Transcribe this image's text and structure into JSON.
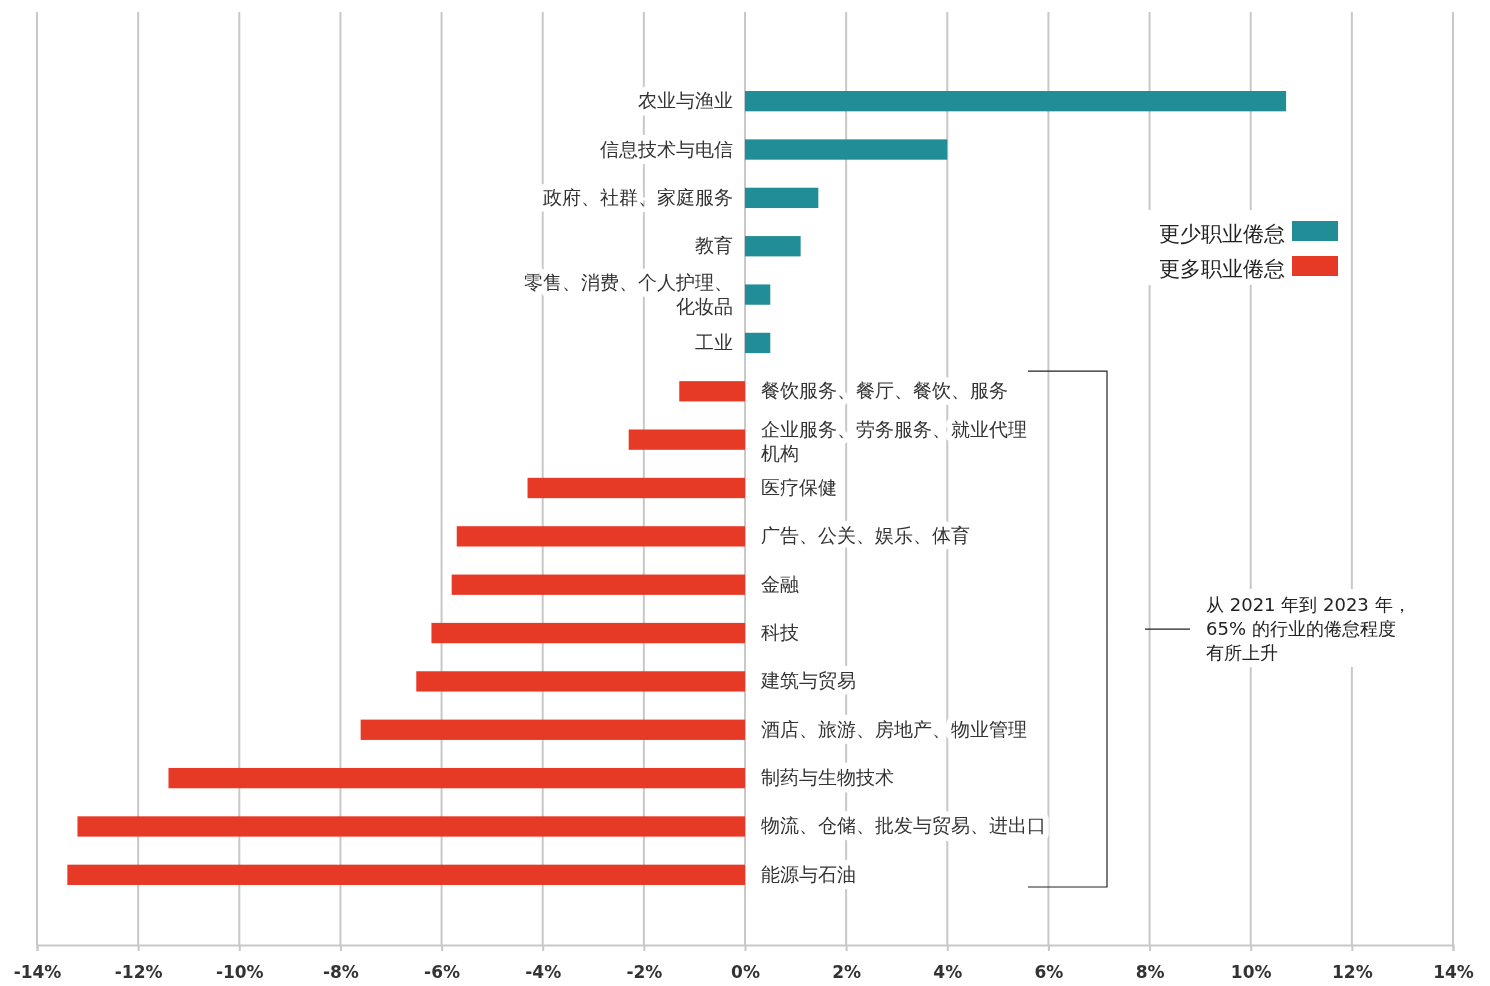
{
  "chart_data": {
    "type": "bar",
    "orientation": "horizontal",
    "stacked": true,
    "categories": [
      "农业与渔业",
      "信息技术与电信",
      "政府、社群、家庭服务",
      "教育",
      "零售、消费、个人护理、化妆品",
      "工业",
      "餐饮服务、餐厅、餐饮、服务",
      "企业服务、劳务服务、就业代理机构",
      "医疗保健",
      "广告、公关、娱乐、体育",
      "金融",
      "科技",
      "建筑与贸易",
      "酒店、旅游、房地产、物业管理",
      "制药与生物技术",
      "物流、仓储、批发与贸易、进出口",
      "能源与石油"
    ],
    "series": [
      {
        "name": "更少职业倦怠",
        "color": "#218d96",
        "values": [
          10.7,
          4.0,
          1.45,
          1.1,
          0.5,
          0.5,
          null,
          null,
          null,
          null,
          null,
          null,
          null,
          null,
          null,
          null,
          null
        ]
      },
      {
        "name": "更多职业倦怠",
        "color": "#e63a27",
        "values": [
          null,
          null,
          null,
          null,
          null,
          null,
          -1.3,
          -2.3,
          -4.3,
          -5.7,
          -5.8,
          -6.2,
          -6.5,
          -7.6,
          -11.4,
          -13.2,
          -13.4
        ]
      }
    ],
    "xlim": [
      -14,
      14
    ],
    "xticks": [
      {
        "value": -14,
        "label": "-14%"
      },
      {
        "value": -12,
        "label": "-12%"
      },
      {
        "value": -10,
        "label": "-10%"
      },
      {
        "value": -8,
        "label": "-8%"
      },
      {
        "value": -6,
        "label": "-6%"
      },
      {
        "value": -4,
        "label": "-4%"
      },
      {
        "value": -2,
        "label": "-2%"
      },
      {
        "value": 0,
        "label": "0%"
      },
      {
        "value": 2,
        "label": "2%"
      },
      {
        "value": 4,
        "label": "4%"
      },
      {
        "value": 6,
        "label": "6%"
      },
      {
        "value": 8,
        "label": "8%"
      },
      {
        "value": 10,
        "label": "10%"
      },
      {
        "value": 12,
        "label": "12%"
      },
      {
        "value": 14,
        "label": "14%"
      }
    ],
    "grid": "x",
    "legend": "right",
    "annotations": [
      "从 2021 年到 2023 年，65% 的行业的倦怠程度有所上升"
    ]
  }
}
